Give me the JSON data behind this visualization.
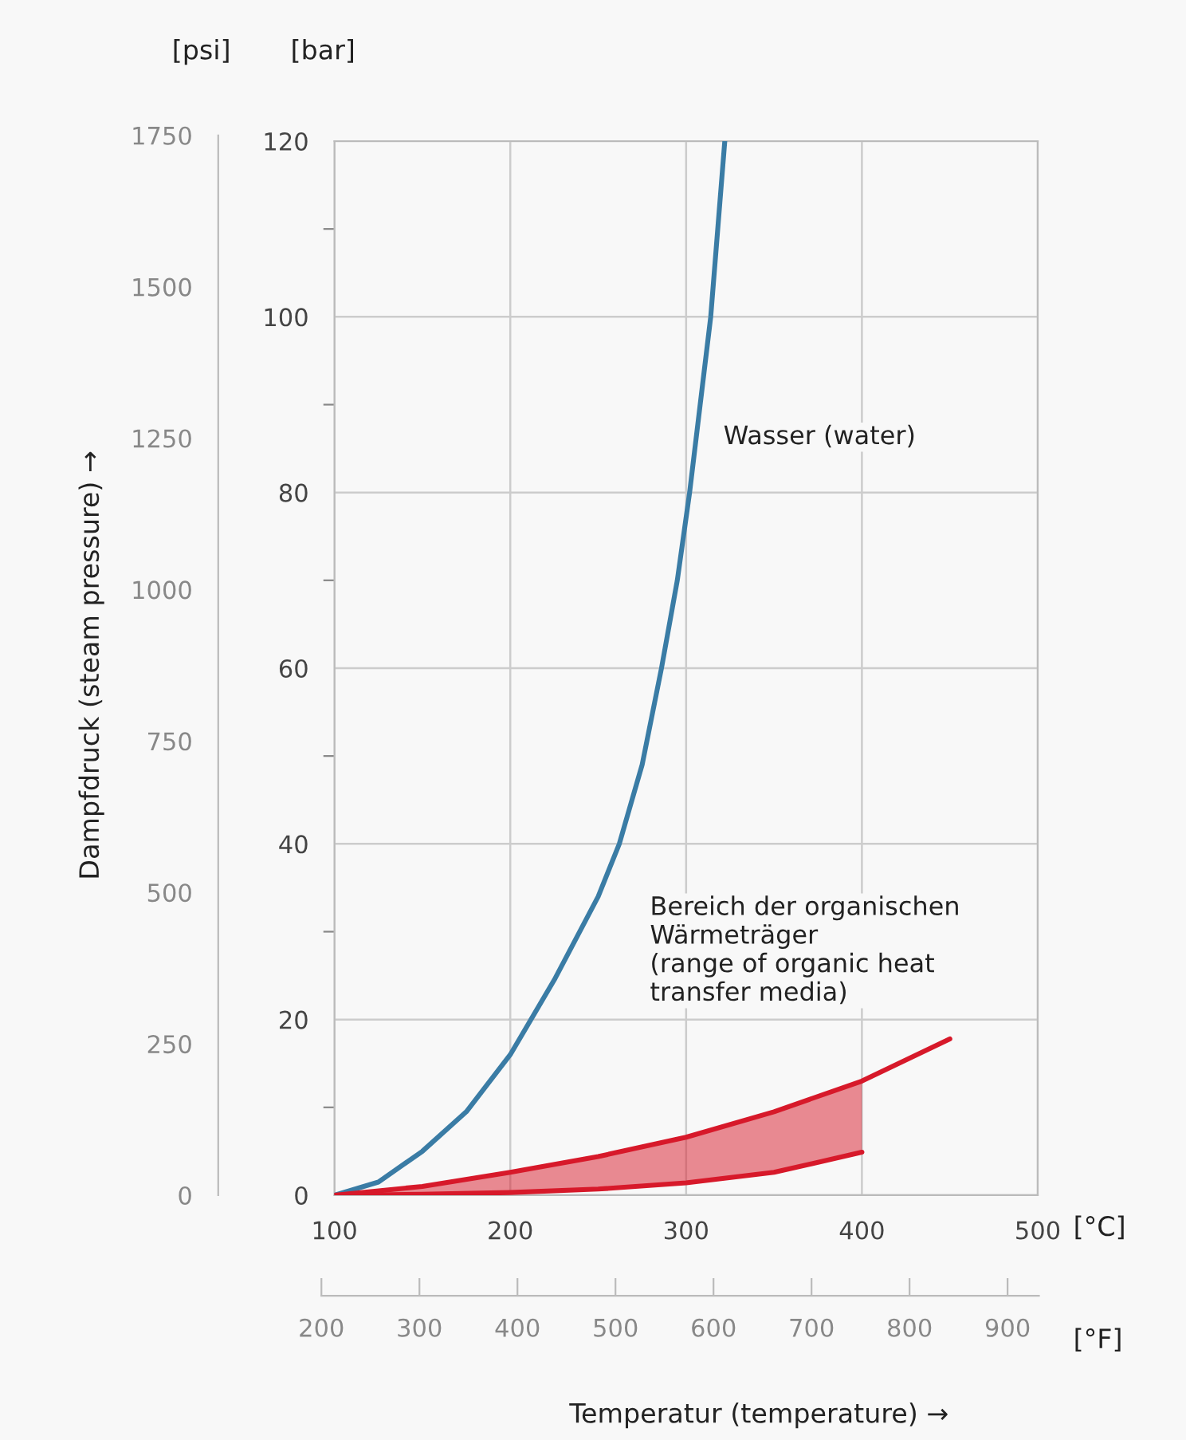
{
  "chart_data": {
    "type": "line",
    "xlabel": "Temperatur (temperature) →",
    "y2label": "Dampfdruck (steam pressure) →",
    "xlim": [
      100,
      500
    ],
    "xticks": [
      100,
      200,
      300,
      400,
      500
    ],
    "ylim": [
      0,
      120
    ],
    "yticks": [
      0,
      {
        "value": 10,
        "label": null
      },
      20,
      {
        "value": 30,
        "label": null
      },
      40,
      {
        "value": 50,
        "label": null
      },
      60,
      {
        "value": 70,
        "label": null
      },
      80,
      {
        "value": 90,
        "label": null
      },
      100,
      {
        "value": 110,
        "label": null
      },
      120
    ],
    "y2lim": [
      0,
      1750
    ],
    "y2ticks": [
      0,
      250,
      500,
      750,
      1000,
      1250,
      1500,
      1750
    ],
    "x2lim": [
      200,
      932
    ],
    "x2ticks": [
      200,
      300,
      400,
      500,
      600,
      700,
      800,
      900
    ],
    "grid": true,
    "marker": "none",
    "line_style": "solid",
    "annotations": [
      "[bar]",
      "[psi]",
      "[°C]",
      "[°F]",
      "Wasser (water)",
      "Bereich der organischen\nWärmeträger\n(range of organic heat\ntransfer media)"
    ],
    "series": [
      {
        "color": "#3a7ca5",
        "x": [
          100,
          125,
          150,
          175,
          200,
          225,
          250,
          262,
          275,
          286,
          295,
          302,
          308,
          314,
          318,
          322
        ],
        "values": [
          0,
          1.5,
          5,
          9.5,
          16,
          24.5,
          34,
          40,
          49,
          60,
          70,
          80,
          90,
          100,
          110,
          120
        ]
      },
      {
        "color": "#d7192a",
        "x": [
          100,
          150,
          200,
          250,
          300,
          350,
          400,
          450
        ],
        "values": [
          0,
          1.0,
          2.6,
          4.4,
          6.6,
          9.5,
          13,
          17.8
        ]
      },
      {
        "color": "#d7192a",
        "x": [
          100,
          150,
          200,
          250,
          300,
          350,
          400
        ],
        "values": [
          0,
          0.1,
          0.3,
          0.7,
          1.4,
          2.6,
          4.9
        ],
        "lower": [
          0,
          0.1,
          0.3,
          0.7,
          1.4,
          2.6,
          4.9
        ],
        "upper": [
          0,
          1.0,
          2.6,
          4.4,
          6.6,
          9.5,
          13
        ]
      }
    ]
  }
}
